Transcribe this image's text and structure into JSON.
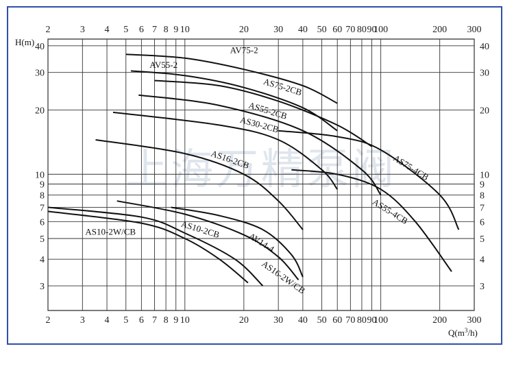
{
  "chart_data": {
    "type": "line",
    "x_scale": "log",
    "y_scale": "log",
    "xlim": [
      2,
      300
    ],
    "ylim": [
      2.3,
      43
    ],
    "grid": true,
    "x_ticks": [
      2,
      3,
      4,
      5,
      6,
      7,
      8,
      9,
      10,
      20,
      30,
      40,
      50,
      60,
      70,
      80,
      90,
      100,
      200,
      300
    ],
    "x_tick_labels": [
      "2",
      "3",
      "4",
      "5",
      "6",
      "7",
      "8",
      "9",
      "10",
      "20",
      "30",
      "40",
      "50",
      "60",
      "70",
      "80",
      "90",
      "100",
      "200",
      "300"
    ],
    "y_ticks": [
      3,
      4,
      5,
      6,
      7,
      8,
      9,
      10,
      20,
      30,
      40
    ],
    "y_tick_labels": [
      "3",
      "4",
      "5",
      "6",
      "7",
      "8",
      "9",
      "10",
      "20",
      "30",
      "40"
    ],
    "ylabel": "H(m)",
    "xlabel_main": "Q(m",
    "xlabel_sup": "3",
    "xlabel_tail": "/h)",
    "watermark": "上海万精泵阀",
    "series": [
      {
        "name": "AV75-2",
        "points": [
          [
            5,
            36.5
          ],
          [
            10,
            35
          ],
          [
            20,
            31
          ],
          [
            40,
            26
          ],
          [
            60,
            21.5
          ]
        ]
      },
      {
        "name": "AV55-2",
        "points": [
          [
            5.3,
            30.5
          ],
          [
            10,
            29
          ],
          [
            20,
            25.5
          ],
          [
            40,
            20.5
          ],
          [
            60,
            16
          ]
        ]
      },
      {
        "name": "AS75-2CB",
        "points": [
          [
            7,
            27.5
          ],
          [
            15,
            26
          ],
          [
            30,
            22
          ],
          [
            60,
            17
          ],
          [
            90,
            13.5
          ]
        ]
      },
      {
        "name": "AS55-2CB",
        "points": [
          [
            5.8,
            23.5
          ],
          [
            15,
            21
          ],
          [
            40,
            16
          ],
          [
            80,
            10.5
          ],
          [
            100,
            8
          ]
        ]
      },
      {
        "name": "AS30-2CB",
        "points": [
          [
            4.3,
            19.5
          ],
          [
            15,
            17
          ],
          [
            30,
            14.5
          ],
          [
            50,
            10.5
          ],
          [
            60,
            8.5
          ]
        ]
      },
      {
        "name": "AS16-2CB",
        "points": [
          [
            3.5,
            14.5
          ],
          [
            10,
            12.5
          ],
          [
            20,
            10
          ],
          [
            30,
            7.5
          ],
          [
            40,
            5.5
          ]
        ]
      },
      {
        "name": "AS75-4CB",
        "points": [
          [
            30,
            16
          ],
          [
            60,
            15
          ],
          [
            100,
            13
          ],
          [
            200,
            8
          ],
          [
            250,
            5.5
          ]
        ]
      },
      {
        "name": "AS55-4CB",
        "points": [
          [
            35,
            10.5
          ],
          [
            60,
            10
          ],
          [
            100,
            8.5
          ],
          [
            150,
            6
          ],
          [
            230,
            3.5
          ]
        ]
      },
      {
        "name": "AV14-4",
        "points": [
          [
            8.5,
            7
          ],
          [
            15,
            6.4
          ],
          [
            25,
            5.5
          ],
          [
            35,
            4.2
          ],
          [
            40,
            3.3
          ]
        ]
      },
      {
        "name": "AS16-2W/CB",
        "points": [
          [
            4.5,
            7.5
          ],
          [
            10,
            6.5
          ],
          [
            20,
            5.2
          ],
          [
            30,
            4.1
          ],
          [
            38,
            3.2
          ]
        ]
      },
      {
        "name": "AS10-2CB",
        "points": [
          [
            2,
            7
          ],
          [
            6,
            6.3
          ],
          [
            10,
            5.3
          ],
          [
            18,
            4
          ],
          [
            25,
            3
          ]
        ]
      },
      {
        "name": "AS10-2W/CB",
        "points": [
          [
            2,
            6.7
          ],
          [
            6,
            5.9
          ],
          [
            10,
            5
          ],
          [
            15,
            4
          ],
          [
            21,
            3.1
          ]
        ]
      }
    ],
    "curve_labels": [
      {
        "text": "AV75-2",
        "x": 17,
        "y": 37,
        "rot": 0
      },
      {
        "text": "AV55-2",
        "x": 6.6,
        "y": 31.5,
        "rot": 0
      },
      {
        "text": "AS75-2CB",
        "x": 25,
        "y": 26.5,
        "rot": 17
      },
      {
        "text": "AS55-2CB",
        "x": 21,
        "y": 20.5,
        "rot": 17
      },
      {
        "text": "AS30-2CB",
        "x": 19,
        "y": 17.5,
        "rot": 15
      },
      {
        "text": "AS16-2CB",
        "x": 13.5,
        "y": 12.2,
        "rot": 19
      },
      {
        "text": "AS75-4CB",
        "x": 115,
        "y": 11.7,
        "rot": 32
      },
      {
        "text": "AS55-4CB",
        "x": 90,
        "y": 7.3,
        "rot": 32
      },
      {
        "text": "AV14-4",
        "x": 21,
        "y": 5.05,
        "rot": 32
      },
      {
        "text": "AS16-2W/CB",
        "x": 24.5,
        "y": 3.75,
        "rot": 35
      },
      {
        "text": "AS10-2CB",
        "x": 9.5,
        "y": 5.7,
        "rot": 17
      },
      {
        "text": "AS10-2W/CB",
        "x": 3.1,
        "y": 5.2,
        "rot": 0
      }
    ]
  }
}
